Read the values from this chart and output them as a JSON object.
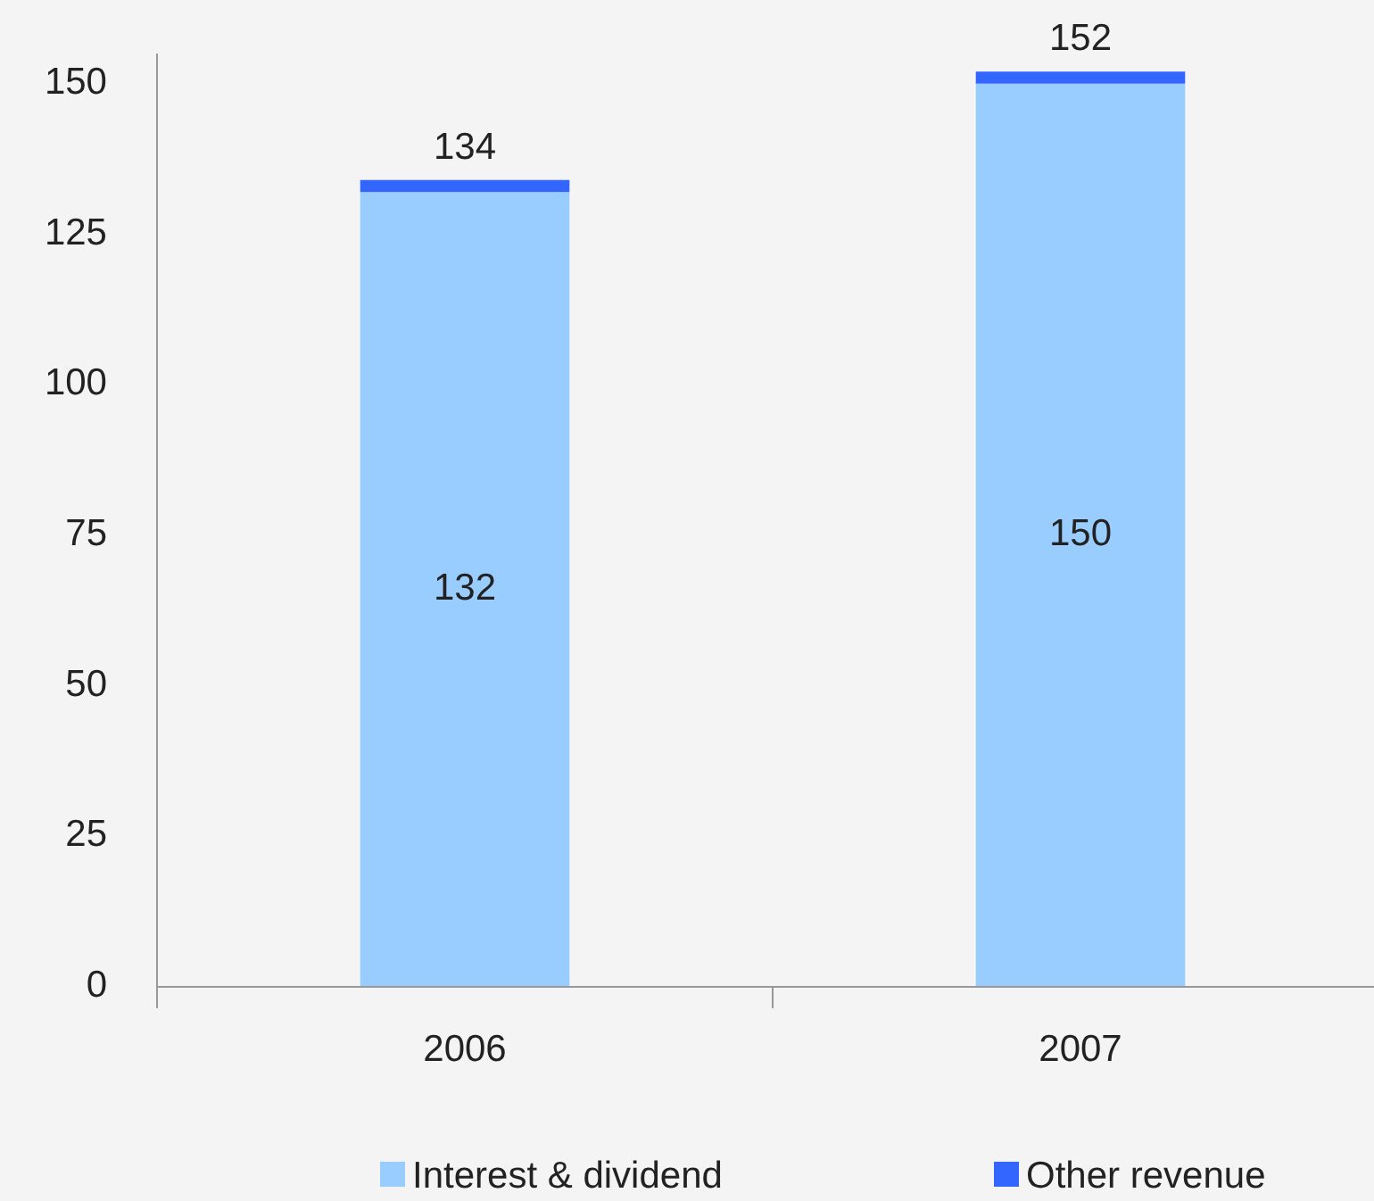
{
  "chart_data": {
    "type": "bar",
    "stacked": true,
    "categories": [
      "2006",
      "2007"
    ],
    "series": [
      {
        "name": "Interest & dividend",
        "color": "#99ccff",
        "values": [
          132,
          150
        ],
        "value_labels": [
          "132",
          "150"
        ]
      },
      {
        "name": "Other revenue",
        "color": "#3366ff",
        "values": [
          2,
          2
        ]
      }
    ],
    "totals": [
      "134",
      "152"
    ],
    "ylim": [
      0,
      155
    ],
    "yticks": [
      0,
      25,
      50,
      75,
      100,
      125,
      150
    ],
    "grid": false,
    "legend": "bottom"
  }
}
